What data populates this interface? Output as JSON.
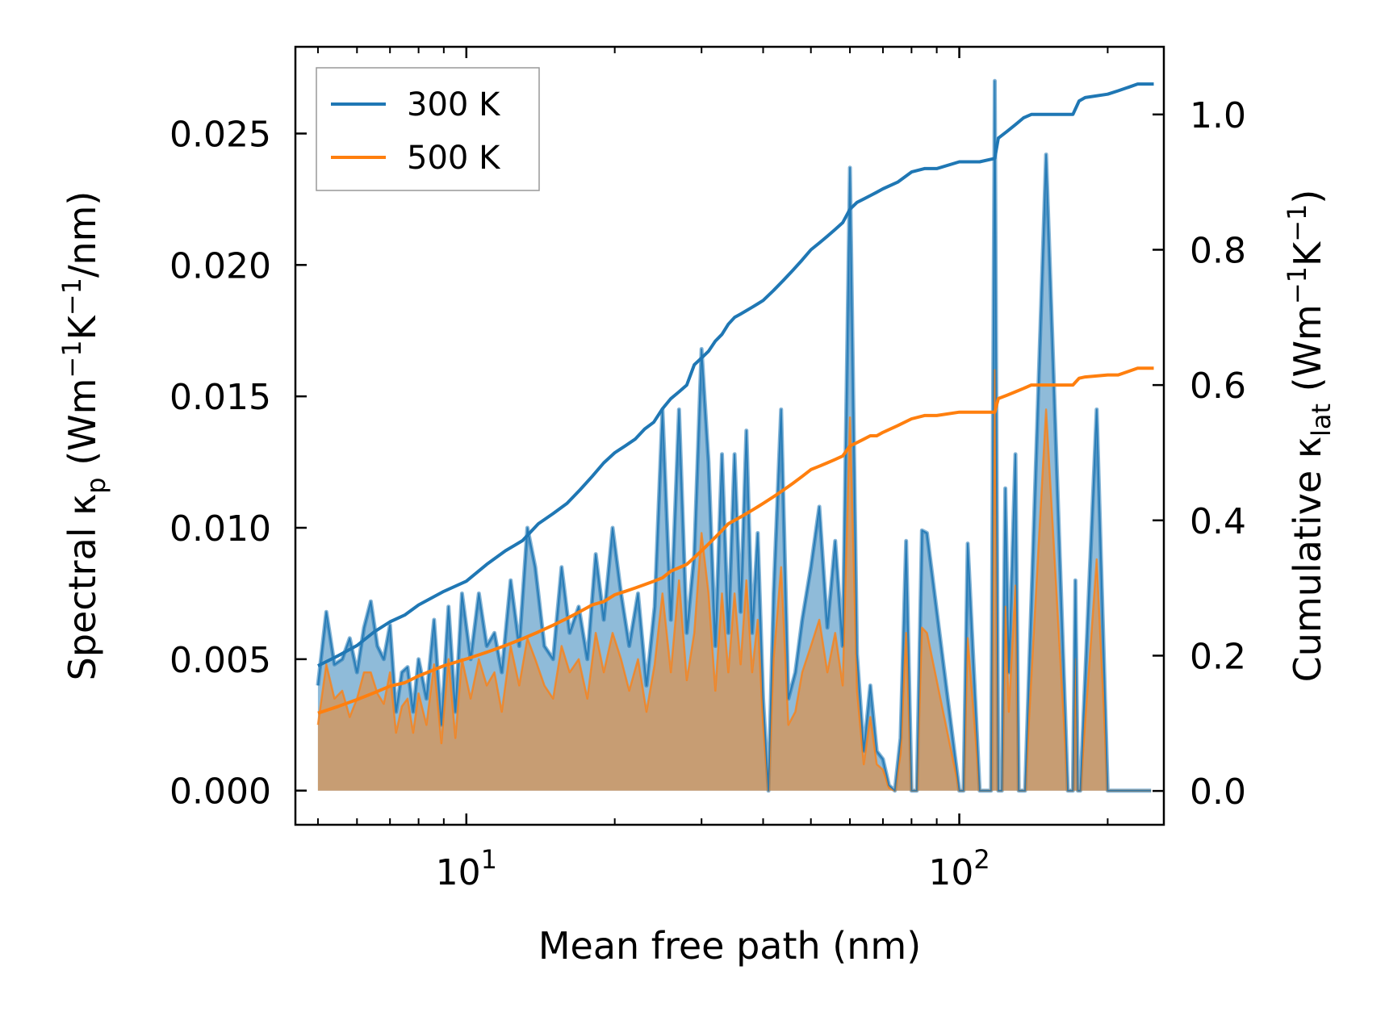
{
  "chart_data": {
    "type": "line",
    "title": "",
    "xlabel": "Mean free path (nm)",
    "xscale": "log",
    "xlim": [
      4.5,
      260
    ],
    "x_ticks": [
      {
        "value": 10,
        "base": "10",
        "exp": "1"
      },
      {
        "value": 100,
        "base": "10",
        "exp": "2"
      }
    ],
    "ylabel_left": {
      "main": "Spectral κ",
      "sub": "p",
      "unit_pre": " (Wm",
      "sup1": "−1",
      "unit_mid": "K",
      "sup2": "−1",
      "unit_post": "/nm)"
    },
    "ylabel_right": {
      "main": "Cumulative κ",
      "sub": "lat",
      "unit_pre": " (Wm",
      "sup1": "−1",
      "unit_mid": "K",
      "sup2": "−1",
      "unit_post": ")"
    },
    "ylim_left": [
      -0.0013,
      0.0283
    ],
    "ylim_right": [
      -0.05,
      1.1
    ],
    "y_ticks_left": [
      "0.000",
      "0.005",
      "0.010",
      "0.015",
      "0.020",
      "0.025"
    ],
    "y_ticks_left_values": [
      0,
      0.005,
      0.01,
      0.015,
      0.02,
      0.025
    ],
    "y_ticks_right": [
      "0.0",
      "0.2",
      "0.4",
      "0.6",
      "0.8",
      "1.0"
    ],
    "y_ticks_right_values": [
      0,
      0.2,
      0.4,
      0.6,
      0.8,
      1.0
    ],
    "legend": {
      "position": "top-left",
      "entries": [
        "300 K",
        "500 K"
      ]
    },
    "colors": {
      "s300": "#1f77b4",
      "s500": "#ff7f0e",
      "fill300": "#1f77b4",
      "fill500": "#ff7f0e"
    },
    "series": [
      {
        "name": "300 K",
        "axis": "left",
        "kind": "spectral",
        "x": [
          5.0,
          5.2,
          5.4,
          5.6,
          5.8,
          6.0,
          6.2,
          6.4,
          6.6,
          6.8,
          7.0,
          7.2,
          7.4,
          7.6,
          7.8,
          8.0,
          8.3,
          8.6,
          8.9,
          9.2,
          9.5,
          9.8,
          10.2,
          10.6,
          11.0,
          11.4,
          11.8,
          12.3,
          12.8,
          13.3,
          13.8,
          14.4,
          15.0,
          15.6,
          16.2,
          16.9,
          17.6,
          18.3,
          19.0,
          19.8,
          20.6,
          21.4,
          22.3,
          23.2,
          24.1,
          25.0,
          26.0,
          27.0,
          28.0,
          29.0,
          30.0,
          31.0,
          32.0,
          33.0,
          34.0,
          35.0,
          36.0,
          37.0,
          38.0,
          39.0,
          40.0,
          41.0,
          42.0,
          43.5,
          45.0,
          46.5,
          48.0,
          50.0,
          52.0,
          54.0,
          56.0,
          58.0,
          60.0,
          62.0,
          64.0,
          66.0,
          68.0,
          70.0,
          72.0,
          74.0,
          76.0,
          78.0,
          80.0,
          82.0,
          84.0,
          86.0,
          100.0,
          102.0,
          104.0,
          110.0,
          116.0,
          118.0,
          120.0,
          122.0,
          124.0,
          126.0,
          130.0,
          132.0,
          134.0,
          136.0,
          150.0,
          166.0,
          170.0,
          172.0,
          174.0,
          176.0,
          190.0,
          200.0,
          205.0,
          210.0,
          215.0,
          220.0,
          230.0,
          235.0,
          240.0,
          245.0
        ],
        "values": [
          0.004,
          0.0068,
          0.0048,
          0.005,
          0.0058,
          0.0045,
          0.0062,
          0.0072,
          0.0055,
          0.005,
          0.0063,
          0.003,
          0.0045,
          0.0047,
          0.003,
          0.005,
          0.0035,
          0.0065,
          0.0025,
          0.007,
          0.003,
          0.0075,
          0.005,
          0.0075,
          0.0055,
          0.006,
          0.0045,
          0.008,
          0.0055,
          0.01,
          0.0085,
          0.0055,
          0.005,
          0.0085,
          0.006,
          0.007,
          0.005,
          0.009,
          0.0065,
          0.01,
          0.0075,
          0.0055,
          0.0075,
          0.004,
          0.007,
          0.0145,
          0.0065,
          0.0145,
          0.006,
          0.009,
          0.0168,
          0.0125,
          0.0055,
          0.0128,
          0.006,
          0.0128,
          0.0068,
          0.0137,
          0.006,
          0.0098,
          0.0035,
          0.0,
          0.0075,
          0.0145,
          0.0035,
          0.0045,
          0.0065,
          0.0085,
          0.0108,
          0.0062,
          0.0095,
          0.0055,
          0.0237,
          0.0052,
          0.0015,
          0.004,
          0.0015,
          0.0012,
          0.0002,
          0.0,
          0.002,
          0.0095,
          0.0,
          0.0,
          0.0099,
          0.0098,
          0.0,
          0.0,
          0.0094,
          0.0,
          0.0,
          0.027,
          0.0,
          0.0,
          0.0115,
          0.0045,
          0.0128,
          0.0,
          0.0,
          0.0,
          0.0242,
          0.0,
          0.0,
          0.008,
          0.0,
          0.0,
          0.0145,
          0.0,
          0.0,
          0.0,
          0.0,
          0.0,
          0.0,
          0.0,
          0.0,
          0.0
        ]
      },
      {
        "name": "500 K",
        "axis": "left",
        "kind": "spectral",
        "x": [
          5.0,
          5.2,
          5.4,
          5.6,
          5.8,
          6.0,
          6.2,
          6.4,
          6.6,
          6.8,
          7.0,
          7.2,
          7.4,
          7.6,
          7.8,
          8.0,
          8.3,
          8.6,
          8.9,
          9.2,
          9.5,
          9.8,
          10.2,
          10.6,
          11.0,
          11.4,
          11.8,
          12.3,
          12.8,
          13.3,
          13.8,
          14.4,
          15.0,
          15.6,
          16.2,
          16.9,
          17.6,
          18.3,
          19.0,
          19.8,
          20.6,
          21.4,
          22.3,
          23.2,
          24.1,
          25.0,
          26.0,
          27.0,
          28.0,
          29.0,
          30.0,
          31.0,
          32.0,
          33.0,
          34.0,
          35.0,
          36.0,
          37.0,
          38.0,
          39.0,
          40.0,
          41.0,
          42.0,
          43.5,
          45.0,
          46.5,
          48.0,
          50.0,
          52.0,
          54.0,
          56.0,
          58.0,
          60.0,
          62.0,
          64.0,
          66.0,
          68.0,
          70.0,
          72.0,
          74.0,
          76.0,
          78.0,
          80.0,
          82.0,
          84.0,
          86.0,
          100.0,
          102.0,
          104.0,
          110.0,
          116.0,
          118.0,
          120.0,
          122.0,
          124.0,
          126.0,
          130.0,
          132.0,
          134.0,
          136.0,
          150.0,
          166.0,
          170.0,
          172.0,
          174.0,
          176.0,
          190.0,
          200.0,
          205.0,
          210.0,
          215.0,
          220.0,
          230.0,
          235.0,
          240.0,
          245.0
        ],
        "values": [
          0.0025,
          0.0048,
          0.0035,
          0.0038,
          0.0028,
          0.0035,
          0.0045,
          0.0045,
          0.0037,
          0.0033,
          0.0045,
          0.0022,
          0.0032,
          0.0035,
          0.0022,
          0.0037,
          0.0025,
          0.0048,
          0.0018,
          0.005,
          0.002,
          0.005,
          0.0035,
          0.005,
          0.004,
          0.0045,
          0.003,
          0.0055,
          0.004,
          0.0058,
          0.005,
          0.004,
          0.0035,
          0.0055,
          0.0045,
          0.005,
          0.0035,
          0.006,
          0.0045,
          0.006,
          0.005,
          0.0038,
          0.005,
          0.003,
          0.0048,
          0.0075,
          0.0045,
          0.008,
          0.0042,
          0.006,
          0.0098,
          0.0075,
          0.0038,
          0.0075,
          0.0045,
          0.0075,
          0.0048,
          0.008,
          0.0045,
          0.0065,
          0.0025,
          0.0,
          0.005,
          0.0085,
          0.0025,
          0.003,
          0.0045,
          0.0055,
          0.0065,
          0.0045,
          0.006,
          0.004,
          0.0142,
          0.0038,
          0.001,
          0.0028,
          0.001,
          0.0008,
          0.0001,
          0.0,
          0.0014,
          0.006,
          0.0,
          0.0,
          0.0062,
          0.006,
          0.0,
          0.0,
          0.0058,
          0.0,
          0.0,
          0.016,
          0.0,
          0.0,
          0.007,
          0.003,
          0.0078,
          0.0,
          0.0,
          0.0,
          0.0145,
          0.0,
          0.0,
          0.005,
          0.0,
          0.0,
          0.0088,
          0.0,
          0.0,
          0.0,
          0.0,
          0.0,
          0.0,
          0.0,
          0.0,
          0.0
        ]
      },
      {
        "name": "300 K cumulative",
        "axis": "right",
        "kind": "cumulative",
        "x": [
          5.0,
          5.5,
          6.0,
          6.5,
          7.0,
          7.5,
          8.0,
          9.0,
          10.0,
          11.0,
          12.0,
          13.0,
          14.0,
          15.0,
          16.0,
          17.0,
          18.0,
          19.0,
          20.0,
          21.0,
          22.0,
          23.0,
          24.0,
          25.0,
          26.0,
          27.0,
          28.0,
          29.0,
          30.0,
          31.0,
          32.0,
          33.0,
          34.0,
          35.0,
          36.0,
          37.0,
          38.0,
          39.0,
          40.0,
          42.0,
          44.0,
          46.0,
          48.0,
          50.0,
          52.0,
          54.0,
          56.0,
          58.0,
          60.0,
          62.0,
          64.0,
          66.0,
          68.0,
          70.0,
          75.0,
          80.0,
          85.0,
          90.0,
          100.0,
          105.0,
          110.0,
          118.0,
          120.0,
          125.0,
          130.0,
          135.0,
          140.0,
          150.0,
          160.0,
          170.0,
          175.0,
          180.0,
          200.0,
          210.0,
          220.0,
          230.0,
          240.0,
          248.0
        ],
        "values": [
          0.185,
          0.2,
          0.215,
          0.235,
          0.25,
          0.26,
          0.275,
          0.295,
          0.31,
          0.335,
          0.355,
          0.37,
          0.395,
          0.41,
          0.425,
          0.445,
          0.465,
          0.485,
          0.5,
          0.51,
          0.52,
          0.535,
          0.545,
          0.565,
          0.58,
          0.59,
          0.6,
          0.63,
          0.64,
          0.65,
          0.665,
          0.675,
          0.69,
          0.7,
          0.705,
          0.71,
          0.715,
          0.72,
          0.725,
          0.74,
          0.755,
          0.77,
          0.785,
          0.8,
          0.81,
          0.82,
          0.83,
          0.84,
          0.86,
          0.87,
          0.875,
          0.88,
          0.885,
          0.89,
          0.9,
          0.915,
          0.92,
          0.92,
          0.93,
          0.93,
          0.93,
          0.935,
          0.965,
          0.975,
          0.985,
          0.995,
          1.0,
          1.0,
          1.0,
          1.0,
          1.02,
          1.025,
          1.03,
          1.035,
          1.04,
          1.045,
          1.045,
          1.045
        ]
      },
      {
        "name": "500 K cumulative",
        "axis": "right",
        "kind": "cumulative",
        "x": [
          5.0,
          5.5,
          6.0,
          6.5,
          7.0,
          7.5,
          8.0,
          9.0,
          10.0,
          11.0,
          12.0,
          13.0,
          14.0,
          15.0,
          16.0,
          17.0,
          18.0,
          19.0,
          20.0,
          21.0,
          22.0,
          23.0,
          24.0,
          25.0,
          26.0,
          27.0,
          28.0,
          29.0,
          30.0,
          31.0,
          32.0,
          33.0,
          34.0,
          35.0,
          36.0,
          37.0,
          38.0,
          39.0,
          40.0,
          42.0,
          44.0,
          46.0,
          48.0,
          50.0,
          52.0,
          54.0,
          56.0,
          58.0,
          60.0,
          62.0,
          64.0,
          66.0,
          68.0,
          70.0,
          75.0,
          80.0,
          85.0,
          90.0,
          100.0,
          105.0,
          110.0,
          118.0,
          120.0,
          125.0,
          130.0,
          135.0,
          140.0,
          150.0,
          160.0,
          170.0,
          175.0,
          180.0,
          200.0,
          210.0,
          220.0,
          230.0,
          240.0,
          248.0
        ],
        "values": [
          0.115,
          0.125,
          0.135,
          0.145,
          0.155,
          0.16,
          0.17,
          0.185,
          0.195,
          0.205,
          0.215,
          0.225,
          0.235,
          0.245,
          0.255,
          0.265,
          0.275,
          0.28,
          0.29,
          0.295,
          0.3,
          0.305,
          0.31,
          0.315,
          0.325,
          0.33,
          0.335,
          0.345,
          0.355,
          0.365,
          0.375,
          0.385,
          0.395,
          0.4,
          0.405,
          0.41,
          0.415,
          0.42,
          0.425,
          0.435,
          0.445,
          0.455,
          0.465,
          0.475,
          0.48,
          0.485,
          0.49,
          0.495,
          0.51,
          0.515,
          0.52,
          0.525,
          0.525,
          0.53,
          0.54,
          0.55,
          0.555,
          0.555,
          0.56,
          0.56,
          0.56,
          0.56,
          0.58,
          0.585,
          0.59,
          0.595,
          0.6,
          0.6,
          0.6,
          0.6,
          0.61,
          0.612,
          0.615,
          0.615,
          0.62,
          0.625,
          0.625,
          0.625
        ]
      }
    ]
  }
}
